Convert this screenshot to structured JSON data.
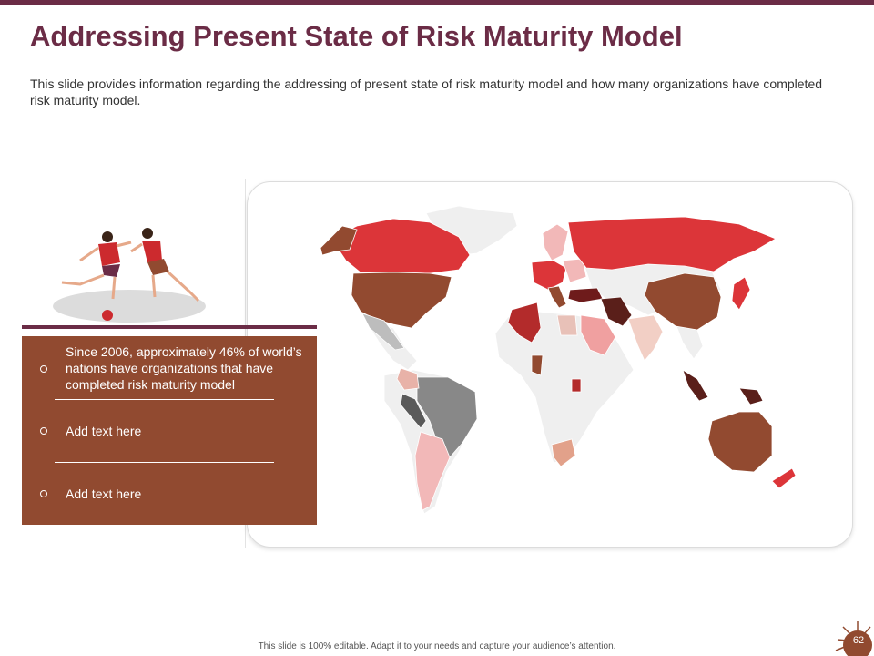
{
  "slide": {
    "title": "Addressing Present State of Risk Maturity Model",
    "subtitle": "This slide provides information regarding the addressing of present state of risk maturity model and how many organizations have completed risk maturity model.",
    "page_number": "62",
    "footer": "This slide is 100% editable. Adapt it to your needs and capture your audience’s attention."
  },
  "panel": {
    "items": [
      {
        "text": "Since 2006, approximately 46% of world’s nations have organizations that have completed risk maturity model"
      },
      {
        "text": "Add text here"
      },
      {
        "text": "Add text here"
      }
    ]
  },
  "colors": {
    "accent": "#6b2c46",
    "panel": "#914a30",
    "map_red": "#dc3539",
    "map_brown": "#924a30",
    "map_dark": "#5a1f1a",
    "map_gray": "#888888",
    "map_light": "#efefef",
    "map_pink": "#f2b8b8"
  },
  "illustration": {
    "name": "soccer-players-illustration"
  }
}
